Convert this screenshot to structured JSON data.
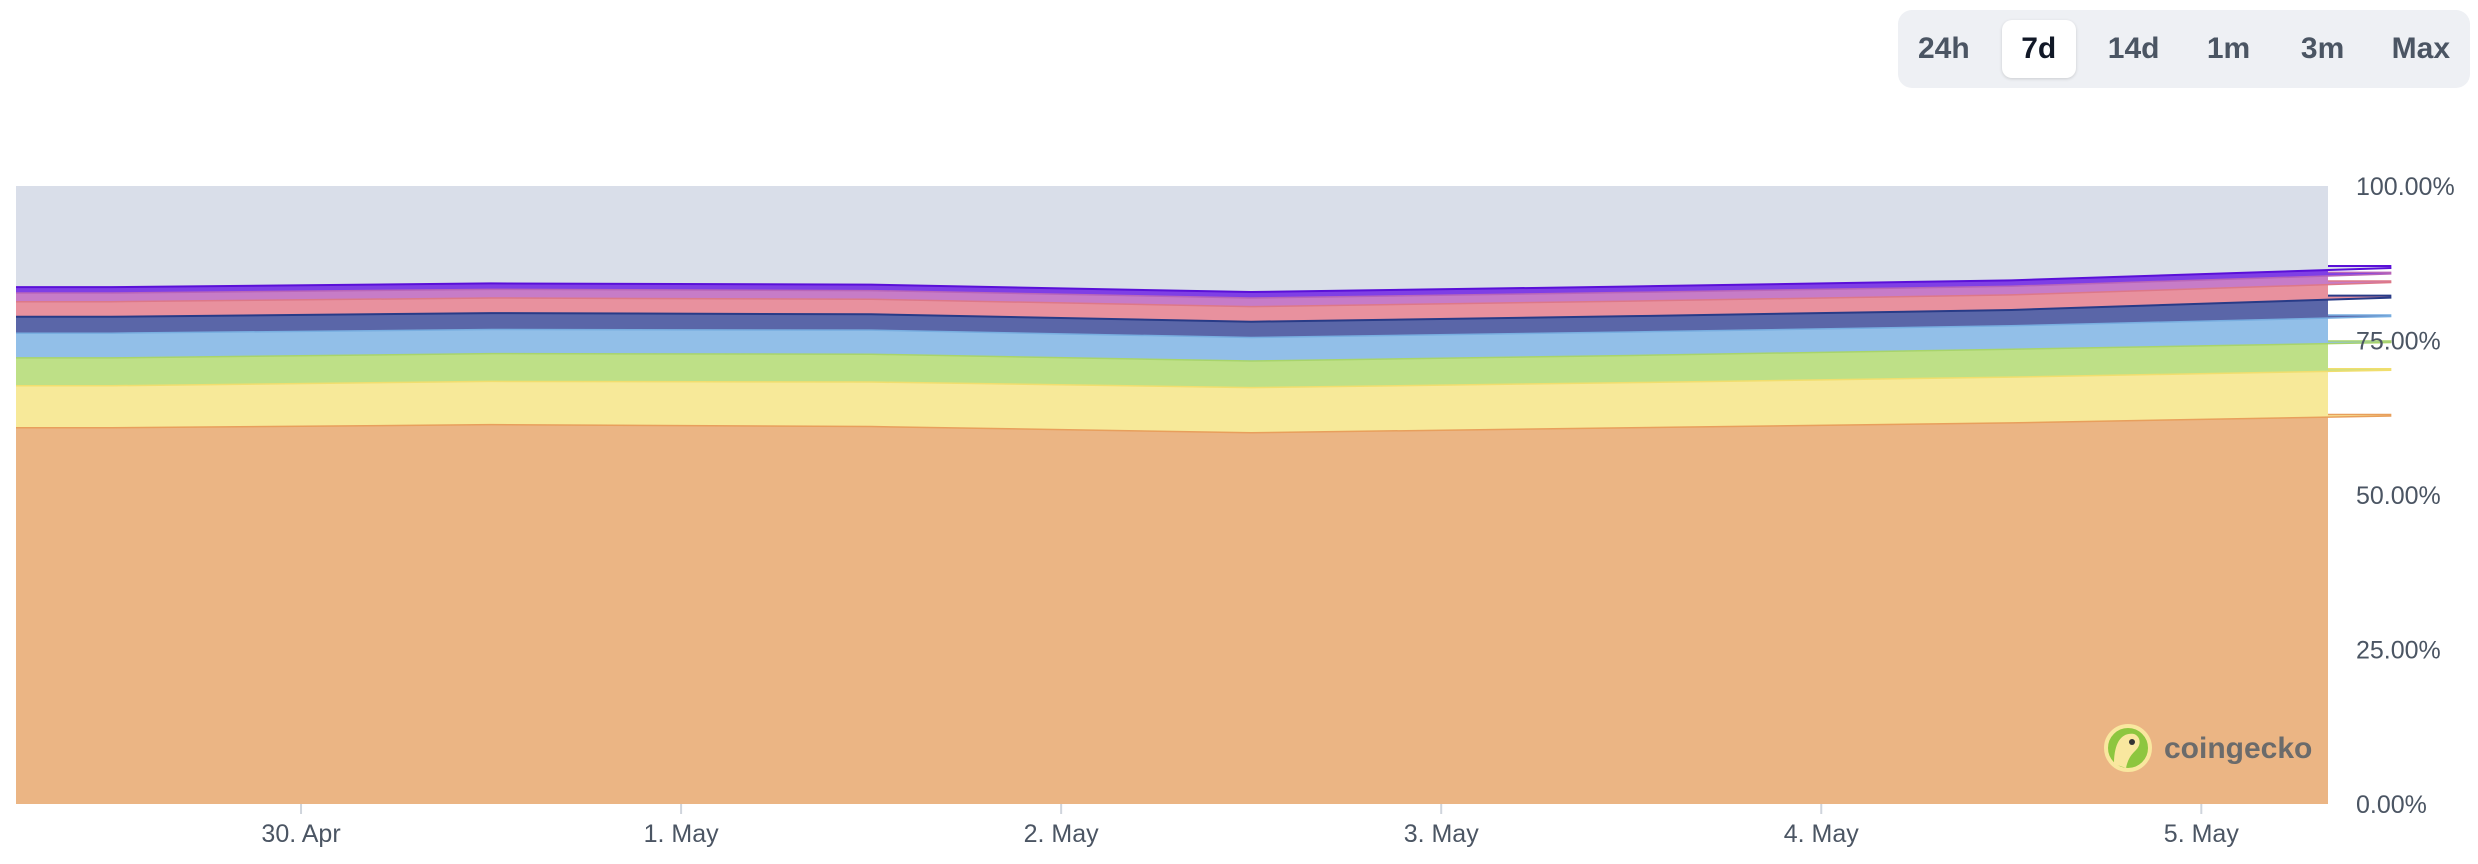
{
  "range_selector": {
    "options": [
      "24h",
      "7d",
      "14d",
      "1m",
      "3m",
      "Max"
    ],
    "active": "7d"
  },
  "watermark": {
    "text": "coingecko",
    "icon": "gecko-logo-icon"
  },
  "chart_data": {
    "type": "area",
    "stacking": "percent",
    "title": "",
    "xlabel": "",
    "ylabel": "",
    "x": [
      "29. Apr 12:00",
      "30. Apr 12:00",
      "1. May 12:00",
      "2. May 12:00",
      "3. May 12:00",
      "4. May 12:00",
      "5. May 12:00"
    ],
    "x_range": [
      "29. Apr 06:00",
      "5. May 08:00"
    ],
    "x_ticks": [
      "30. Apr",
      "1. May",
      "2. May",
      "3. May",
      "4. May",
      "5. May"
    ],
    "y_ticks": [
      "0.00%",
      "25.00%",
      "50.00%",
      "75.00%",
      "100.00%"
    ],
    "ylim": [
      0,
      100
    ],
    "y_unit": "%",
    "grid": false,
    "legend": "none",
    "series": [
      {
        "color": "#ebb584",
        "line_color": "#e89f5c",
        "values": [
          61.0,
          61.5,
          61.2,
          60.2,
          61.0,
          61.8,
          62.9
        ]
      },
      {
        "color": "#f7e999",
        "line_color": "#f1de6e",
        "values": [
          6.8,
          7.0,
          7.2,
          7.3,
          7.3,
          7.4,
          7.4
        ]
      },
      {
        "color": "#bee087",
        "line_color": "#a8d46b",
        "values": [
          4.5,
          4.5,
          4.5,
          4.3,
          4.4,
          4.5,
          4.5
        ]
      },
      {
        "color": "#92bfe8",
        "line_color": "#78aee0",
        "values": [
          4.0,
          3.9,
          3.9,
          3.8,
          3.8,
          3.8,
          4.2
        ]
      },
      {
        "color": "#5a66a8",
        "line_color": "#283b87",
        "values": [
          2.7,
          2.7,
          2.6,
          2.6,
          2.6,
          2.6,
          3.1
        ]
      },
      {
        "color": "#e8919e",
        "line_color": "#dd7888",
        "values": [
          2.4,
          2.4,
          2.4,
          2.4,
          2.4,
          2.4,
          2.4
        ]
      },
      {
        "color": "#c77cc7",
        "line_color": "#b866b8",
        "values": [
          1.4,
          1.4,
          1.4,
          1.4,
          1.4,
          1.4,
          1.4
        ]
      },
      {
        "color": "#7f3fe5",
        "line_color": "#5a10d8",
        "values": [
          1.0,
          1.0,
          1.0,
          1.0,
          1.0,
          1.0,
          1.0
        ]
      },
      {
        "color": "#d9dee9",
        "line_color": "#d9dee9",
        "values": [
          16.2,
          15.6,
          15.8,
          17.0,
          16.1,
          15.1,
          13.1
        ]
      }
    ]
  }
}
